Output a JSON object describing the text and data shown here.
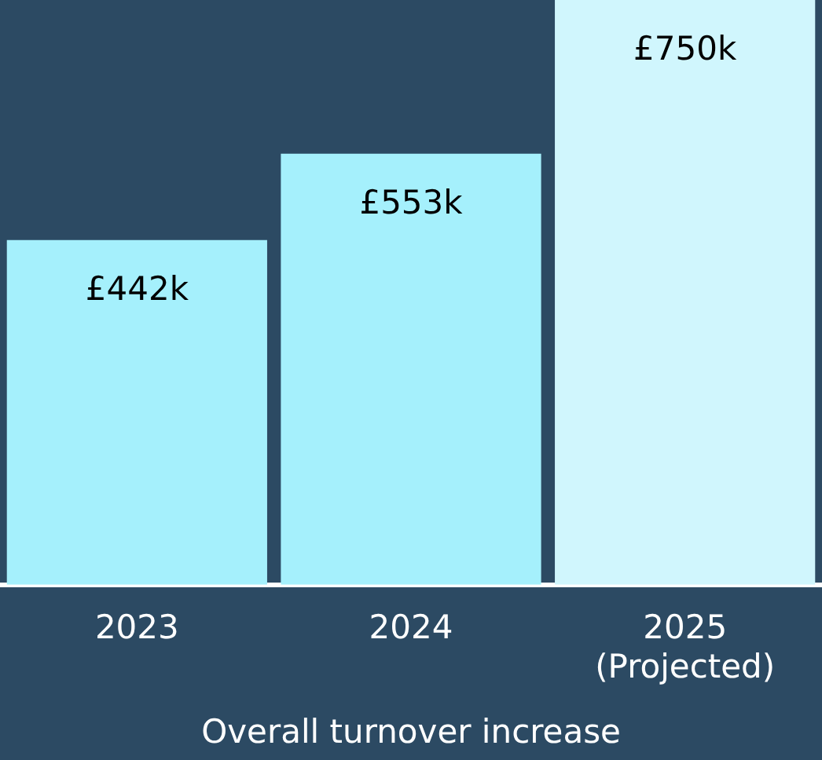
{
  "chart_data": {
    "type": "bar",
    "xlabel": "Overall turnover increase",
    "categories": [
      "2023",
      "2024",
      "2025 (Projected)"
    ],
    "values": [
      442,
      553,
      750
    ],
    "colors": [
      "#a5f0fc",
      "#a5f0fc",
      "#d0f6fd"
    ],
    "value_labels": [
      "£442k",
      "£553k",
      "£750k"
    ],
    "grid": false,
    "legend": false
  }
}
